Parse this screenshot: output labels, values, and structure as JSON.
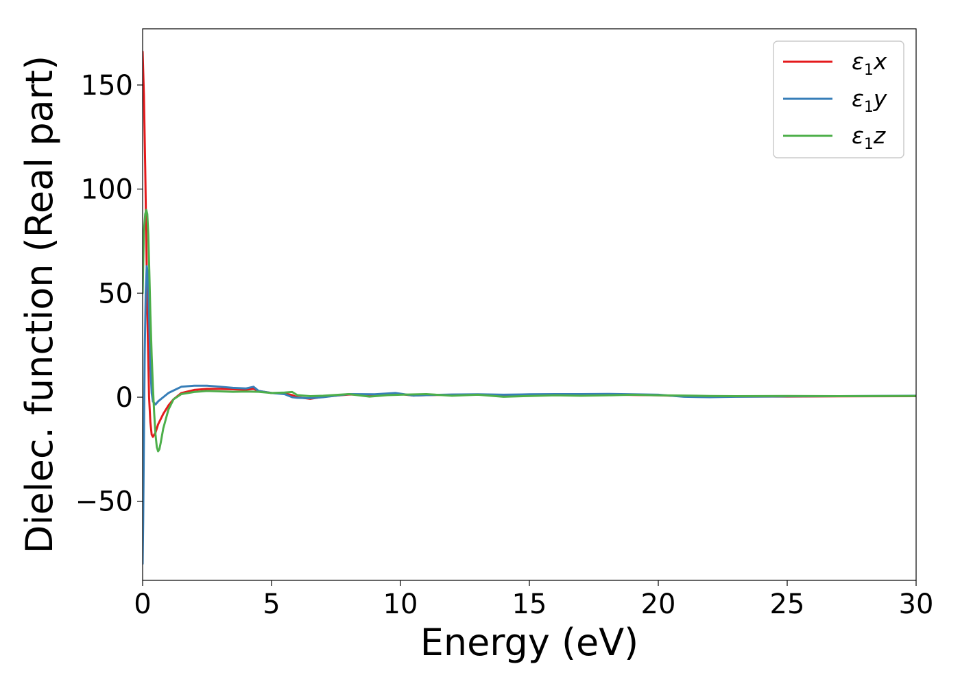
{
  "chart_data": {
    "type": "line",
    "xlabel": "Energy (eV)",
    "ylabel": "Dielec. function (Real part)",
    "xlim": [
      0,
      30
    ],
    "ylim": [
      -88,
      177
    ],
    "x_ticks": [
      0,
      5,
      10,
      15,
      20,
      25,
      30
    ],
    "x_tick_labels": [
      "0",
      "5",
      "10",
      "15",
      "20",
      "25",
      "30"
    ],
    "y_ticks": [
      -50,
      0,
      50,
      100,
      150
    ],
    "y_tick_labels": [
      "−50",
      "0",
      "50",
      "100",
      "150"
    ],
    "grid": false,
    "legend_position": "top-right",
    "series": [
      {
        "name": "ε1x",
        "name_base": "ε",
        "name_sub": "1",
        "name_suffix": "x",
        "color": "#e41a1c",
        "x": [
          0,
          0.05,
          0.1,
          0.15,
          0.2,
          0.25,
          0.3,
          0.35,
          0.4,
          0.5,
          0.6,
          0.8,
          1.0,
          1.2,
          1.5,
          2,
          2.5,
          3,
          3.5,
          4,
          4.3,
          4.5,
          5,
          5.5,
          5.8,
          6,
          6.5,
          7,
          8,
          9,
          9.8,
          10.5,
          11,
          12,
          13,
          14,
          15,
          16,
          17,
          18,
          19,
          20,
          21,
          22,
          23,
          25,
          27,
          30
        ],
        "y": [
          166,
          145,
          110,
          70,
          30,
          0,
          -12,
          -18,
          -19,
          -17,
          -13,
          -8,
          -4,
          -1,
          2,
          3.5,
          4,
          4,
          3.8,
          3.6,
          4,
          3,
          2,
          1.8,
          1,
          0,
          -0.8,
          0.2,
          1.3,
          1.2,
          1.8,
          0.8,
          1,
          1.2,
          1.2,
          1.1,
          1.2,
          1.3,
          1.2,
          1.3,
          1.1,
          0.9,
          0.5,
          0.3,
          0.3,
          0.3,
          0.4,
          0.5
        ]
      },
      {
        "name": "ε1y",
        "name_base": "ε",
        "name_sub": "1",
        "name_suffix": "y",
        "color": "#377eb8",
        "x": [
          0,
          0.02,
          0.05,
          0.08,
          0.12,
          0.16,
          0.2,
          0.25,
          0.3,
          0.35,
          0.4,
          0.5,
          0.6,
          0.8,
          1.0,
          1.5,
          2,
          2.5,
          3,
          3.5,
          4,
          4.3,
          4.5,
          5,
          5.5,
          5.8,
          6,
          6.5,
          7,
          8,
          9,
          9.8,
          10.5,
          11,
          12,
          13,
          14,
          15,
          16,
          17,
          18,
          19,
          20,
          21,
          22,
          23,
          25,
          27,
          30
        ],
        "y": [
          -80,
          -60,
          -20,
          20,
          50,
          63,
          60,
          40,
          15,
          2,
          -2,
          -3.5,
          -2,
          0,
          2,
          5,
          5.5,
          5.5,
          5,
          4.5,
          4.2,
          5,
          3,
          2,
          1.5,
          0,
          -0.3,
          -0.5,
          0,
          1.5,
          1.4,
          2,
          0.8,
          1,
          1.3,
          1.4,
          1.2,
          1.4,
          1.5,
          1.5,
          1.6,
          1.4,
          1.2,
          0.2,
          0,
          0.2,
          0.4,
          0.5,
          0.7
        ]
      },
      {
        "name": "ε1z",
        "name_base": "ε",
        "name_sub": "1",
        "name_suffix": "z",
        "color": "#4daf4a",
        "x": [
          0,
          0.05,
          0.1,
          0.14,
          0.18,
          0.22,
          0.26,
          0.3,
          0.35,
          0.4,
          0.45,
          0.5,
          0.55,
          0.6,
          0.65,
          0.7,
          0.8,
          1.0,
          1.2,
          1.5,
          2,
          2.5,
          3,
          3.5,
          4,
          4.5,
          5,
          5.5,
          5.8,
          6,
          6.5,
          7,
          8,
          8.8,
          9.5,
          10,
          11,
          12,
          13,
          14,
          15,
          16,
          17,
          18,
          19,
          20,
          21,
          22,
          23,
          25,
          27,
          30
        ],
        "y": [
          50,
          80,
          88,
          90,
          88,
          78,
          60,
          40,
          20,
          5,
          -8,
          -18,
          -24,
          -26,
          -25,
          -22,
          -15,
          -6,
          -1,
          1.5,
          2.5,
          3,
          2.8,
          2.6,
          2.7,
          2.6,
          2,
          2.2,
          2.5,
          1,
          0.5,
          0.7,
          1.5,
          0.3,
          1,
          1.2,
          1.5,
          0.7,
          1.2,
          0.2,
          0.6,
          0.9,
          0.7,
          0.9,
          1.2,
          0.9,
          0.8,
          0.6,
          0.5,
          0.6,
          0.5,
          0.6
        ]
      }
    ]
  }
}
